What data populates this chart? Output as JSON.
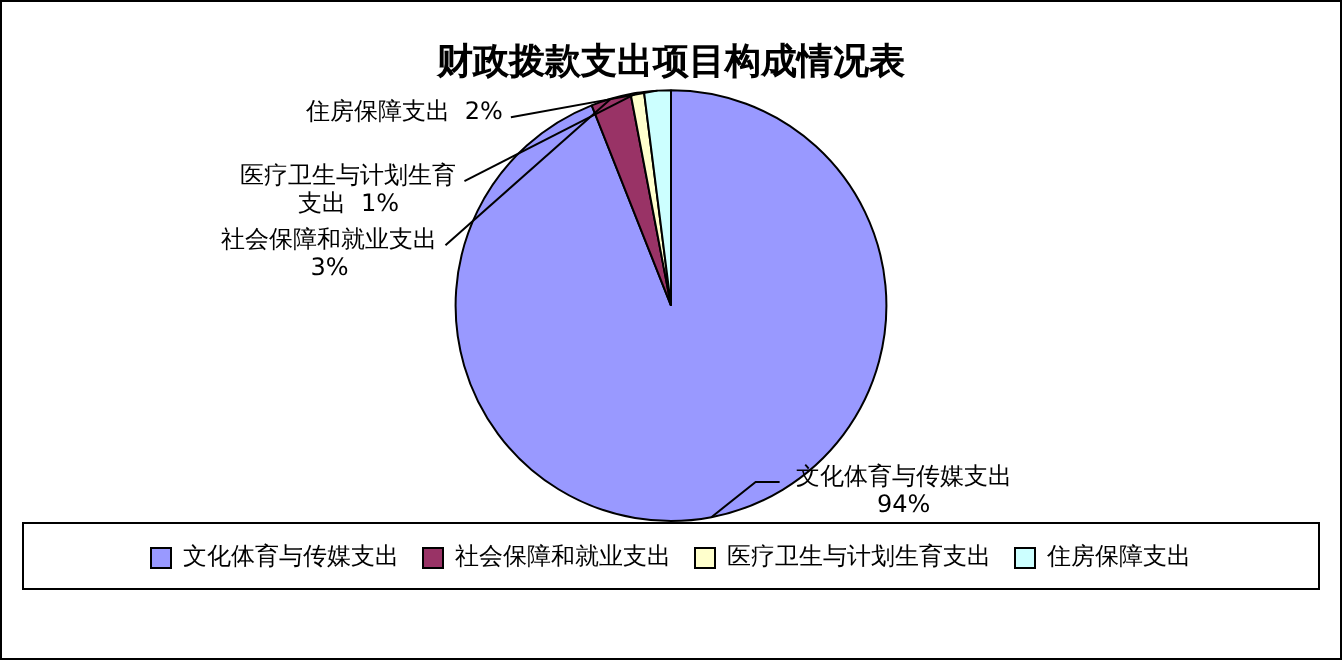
{
  "chart_data": {
    "type": "pie",
    "title": "财政拨款支出项目构成情况表",
    "categories": [
      "文化体育与传媒支出",
      "社会保障和就业支出",
      "医疗卫生与计划生育支出",
      "住房保障支出"
    ],
    "values": [
      94,
      3,
      1,
      2
    ],
    "colors": [
      "#9999ff",
      "#993366",
      "#ffffcc",
      "#ccffff"
    ],
    "value_labels": [
      "94%",
      "3%",
      "1%",
      "2%"
    ],
    "legend": "bottom"
  }
}
